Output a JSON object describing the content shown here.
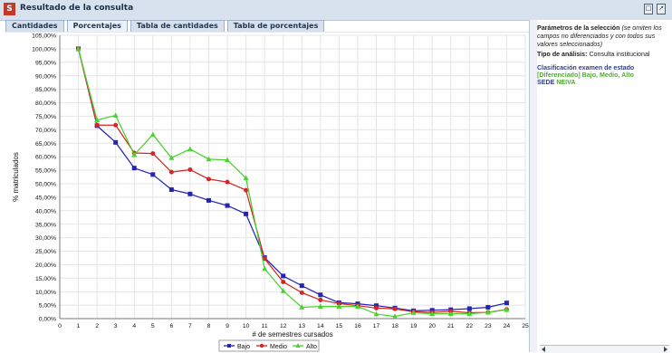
{
  "window": {
    "title": "Resultado de la consulta",
    "icon_text": "S",
    "controls": [
      "□",
      "↗"
    ]
  },
  "tabs": [
    {
      "label": "Cantidades",
      "active": false
    },
    {
      "label": "Porcentajes",
      "active": true
    },
    {
      "label": "Tabla de cantidades",
      "active": false
    },
    {
      "label": "Tabla de porcentajes",
      "active": false
    }
  ],
  "sidebar": {
    "heading": "Parámetros de la selección",
    "heading_note": "(se omiten los campos no diferenciados y con todos sus valores seleccionados)",
    "analysis_label": "Tipo de análisis:",
    "analysis_value": "Consulta institucional",
    "classification_label": "Clasificación examen de estado",
    "classification_value": "[Diferenciado] Bajo, Medio, Alto",
    "sede_label": "SEDE",
    "sede_value": "NEIVA"
  },
  "chart_data": {
    "type": "line",
    "x": [
      1,
      2,
      3,
      4,
      5,
      6,
      7,
      8,
      9,
      10,
      11,
      12,
      13,
      14,
      15,
      16,
      17,
      18,
      19,
      20,
      21,
      22,
      23,
      24
    ],
    "x_ticks": [
      0,
      1,
      2,
      3,
      4,
      5,
      6,
      7,
      8,
      9,
      10,
      11,
      12,
      13,
      14,
      15,
      16,
      17,
      18,
      19,
      20,
      21,
      22,
      23,
      24,
      25
    ],
    "y_ticks": [
      "0,00%",
      "5,00%",
      "10,00%",
      "15,00%",
      "20,00%",
      "25,00%",
      "30,00%",
      "35,00%",
      "40,00%",
      "45,00%",
      "50,00%",
      "55,00%",
      "60,00%",
      "65,00%",
      "70,00%",
      "75,00%",
      "80,00%",
      "85,00%",
      "90,00%",
      "95,00%",
      "100,00%",
      "105,00%"
    ],
    "xlabel": "# de semestres cursados",
    "ylabel": "% matriculados",
    "xlim": [
      0,
      25
    ],
    "ylim": [
      0,
      105
    ],
    "grid": true,
    "legend": "bottom-center",
    "series": [
      {
        "name": "Bajo",
        "color": "#2424b8",
        "marker": "square",
        "values": [
          100,
          71.5,
          65.3,
          55.8,
          53.4,
          47.8,
          46.2,
          43.8,
          41.9,
          38.8,
          22.6,
          15.8,
          12.2,
          8.8,
          5.9,
          5.5,
          4.8,
          3.9,
          2.9,
          3.1,
          3.3,
          3.7,
          4.2,
          5.8
        ]
      },
      {
        "name": "Medio",
        "color": "#d62525",
        "marker": "circle",
        "values": [
          100,
          71.7,
          71.7,
          61.4,
          61.2,
          54.3,
          55.2,
          51.7,
          50.6,
          47.6,
          22.2,
          13.6,
          9.6,
          6.9,
          5.6,
          4.8,
          3.9,
          3.6,
          2.5,
          2.3,
          2.7,
          2.2,
          2.3,
          3.4
        ]
      },
      {
        "name": "Alto",
        "color": "#4ad22f",
        "marker": "triangle",
        "values": [
          100,
          73.6,
          75.3,
          60.7,
          68.2,
          59.6,
          62.8,
          59.1,
          58.8,
          52.1,
          18.5,
          10.3,
          4.2,
          4.5,
          4.5,
          4.5,
          1.7,
          0.8,
          2.2,
          1.8,
          1.8,
          1.8,
          2.3,
          3.3
        ]
      }
    ]
  }
}
